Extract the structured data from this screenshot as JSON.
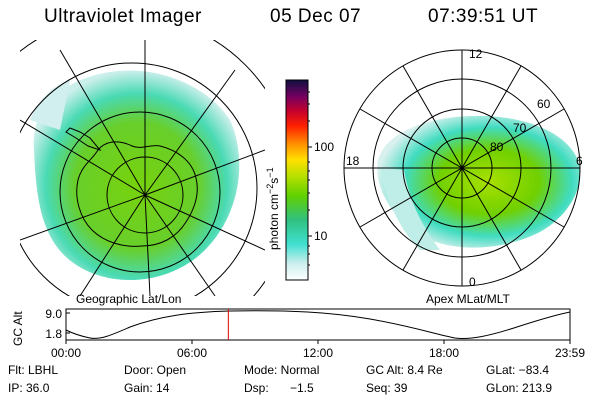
{
  "header": {
    "instrument": "Ultraviolet Imager",
    "date": "05 Dec 07",
    "time": "07:39:51 UT"
  },
  "colorbar": {
    "unit_label": "photon cm",
    "unit_exp1": "−2",
    "unit_mid": "s",
    "unit_exp2": "−1",
    "ticks": [
      "100",
      "10"
    ],
    "scale": "log"
  },
  "left_map": {
    "caption": "Geographic Lat/Lon"
  },
  "right_map": {
    "caption": "Apex MLat/MLT",
    "mlt_labels": {
      "top": "12",
      "left": "18",
      "right": "6",
      "bottom": "0"
    },
    "lat_labels": [
      "60",
      "70",
      "80"
    ]
  },
  "altitude_plot": {
    "ylabel": "GC Alt",
    "yticks": [
      "9.0",
      "1.8"
    ],
    "xticks": [
      "00:00",
      "06:00",
      "12:00",
      "18:00",
      "23:59"
    ],
    "current_time_fraction": 0.3221
  },
  "info": {
    "flt": "Flt: LBHL",
    "ip": "IP: 36.0",
    "door": "Door: Open",
    "gain": "Gain: 14",
    "mode": "Mode: Normal",
    "dsp": "Dsp:",
    "dsp_value": "−1.5",
    "gc_alt": "GC Alt: 8.4 Re",
    "seq": "Seq: 39",
    "glat": "GLat: −83.4",
    "glon": "GLon: 213.9"
  }
}
